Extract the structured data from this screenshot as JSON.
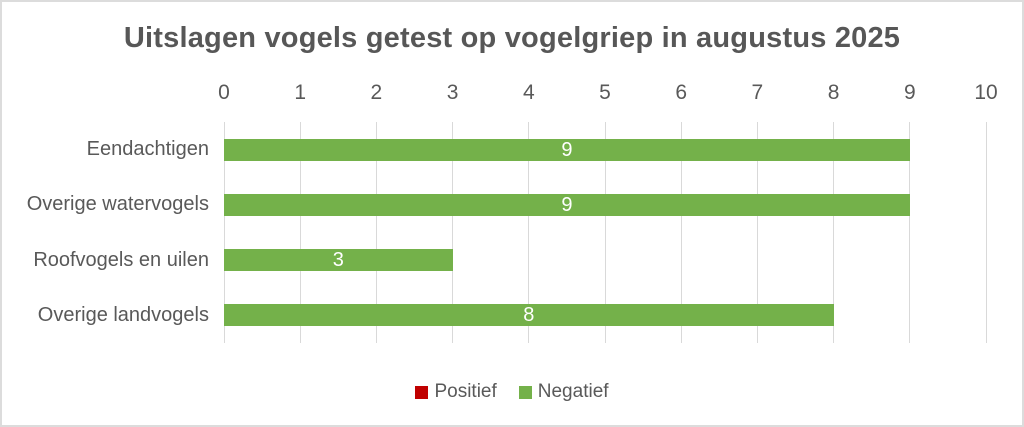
{
  "title": "Uitslagen vogels getest op vogelgriep in augustus 2025",
  "colors": {
    "background": "#FFFFFF",
    "border": "#DCDCDC",
    "text": "#595959",
    "title_text": "#575757",
    "gridline": "#D9D9D9",
    "positief": "#C00000",
    "negatief": "#74B14A",
    "bar_label": "#FFFFFF"
  },
  "chart_data": {
    "type": "bar",
    "orientation": "horizontal",
    "title": "Uitslagen vogels getest op vogelgriep in augustus 2025",
    "categories": [
      "Eendachtigen",
      "Overige watervogels",
      "Roofvogels en uilen",
      "Overige landvogels"
    ],
    "series": [
      {
        "name": "Positief",
        "color": "#C00000",
        "values": [
          0,
          0,
          0,
          0
        ]
      },
      {
        "name": "Negatief",
        "color": "#74B14A",
        "values": [
          9,
          9,
          3,
          8
        ]
      }
    ],
    "xlim": [
      0,
      10
    ],
    "x_ticks": [
      0,
      1,
      2,
      3,
      4,
      5,
      6,
      7,
      8,
      9,
      10
    ],
    "xlabel": "",
    "ylabel": "",
    "grid": true,
    "gridline_color": "#D9D9D9",
    "axis_position": "top",
    "legend_position": "bottom",
    "data_label_position": "center",
    "data_label_color": "#FFFFFF"
  },
  "legend": {
    "items": [
      {
        "label": "Positief",
        "color": "#C00000"
      },
      {
        "label": "Negatief",
        "color": "#74B14A"
      }
    ]
  }
}
